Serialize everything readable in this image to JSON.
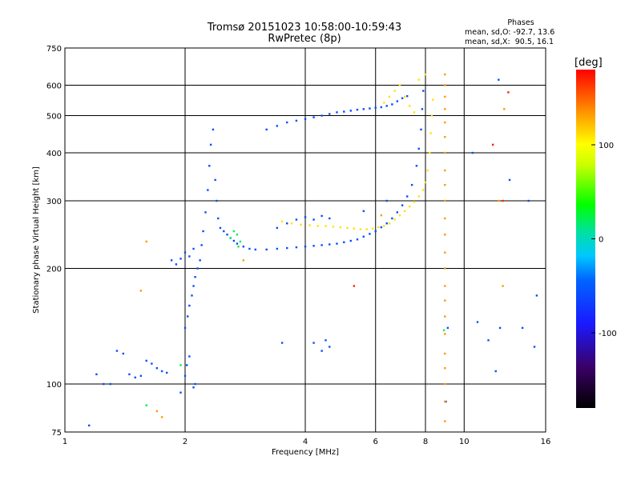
{
  "chart_data": {
    "type": "scatter",
    "title": "Tromsø 20151023 10:58:00-10:59:43",
    "subtitle": "RwPretec (8p)",
    "xlabel": "Frequency [MHz]",
    "ylabel": "Stationary phase Virtual Height [km]",
    "x_scale": "log",
    "y_scale": "log",
    "xlim": [
      1,
      16
    ],
    "ylim": [
      75,
      750
    ],
    "x_ticks": [
      1,
      2,
      4,
      6,
      8,
      10,
      16
    ],
    "x_tick_labels": [
      "1",
      "2",
      "4",
      "6",
      "8",
      "10",
      "16"
    ],
    "y_ticks": [
      75,
      100,
      200,
      300,
      400,
      500,
      600,
      750
    ],
    "y_tick_labels": [
      "75",
      "100",
      "200",
      "300",
      "400",
      "500",
      "600",
      "750"
    ],
    "grid": true,
    "phase_info": {
      "heading": "Phases",
      "o_line": "mean, sd,O: -92.7, 13.6",
      "x_line": "mean, sd,X:  90.5, 16.1"
    },
    "colorbar": {
      "label": "[deg]",
      "ticks": [
        100,
        0,
        -100
      ],
      "tick_labels": [
        "100",
        "0",
        "-100"
      ],
      "range": [
        -180,
        180
      ]
    },
    "series": [
      {
        "color_value": -100,
        "points": [
          [
            1.15,
            78
          ],
          [
            1.2,
            106
          ],
          [
            1.25,
            100
          ],
          [
            1.3,
            100
          ],
          [
            1.35,
            122
          ],
          [
            1.4,
            120
          ],
          [
            1.45,
            106
          ],
          [
            1.5,
            104
          ],
          [
            1.55,
            105
          ],
          [
            1.6,
            115
          ],
          [
            1.65,
            113
          ],
          [
            1.7,
            110
          ],
          [
            1.75,
            108
          ],
          [
            1.8,
            107
          ],
          [
            1.85,
            210
          ],
          [
            1.9,
            205
          ],
          [
            1.95,
            212
          ],
          [
            2.0,
            220
          ],
          [
            2.05,
            215
          ],
          [
            2.1,
            225
          ],
          [
            1.95,
            95
          ],
          [
            2.0,
            105
          ],
          [
            2.02,
            112
          ],
          [
            2.05,
            118
          ],
          [
            2.1,
            98
          ],
          [
            2.12,
            100
          ],
          [
            2.0,
            140
          ],
          [
            2.03,
            150
          ],
          [
            2.05,
            160
          ],
          [
            2.08,
            170
          ],
          [
            2.1,
            180
          ],
          [
            2.12,
            190
          ],
          [
            2.15,
            200
          ],
          [
            2.18,
            210
          ],
          [
            2.2,
            230
          ],
          [
            2.22,
            250
          ],
          [
            2.25,
            280
          ],
          [
            2.28,
            320
          ],
          [
            2.3,
            370
          ],
          [
            2.32,
            420
          ],
          [
            2.35,
            460
          ],
          [
            2.38,
            340
          ],
          [
            2.4,
            300
          ],
          [
            2.42,
            270
          ],
          [
            2.45,
            255
          ],
          [
            2.5,
            250
          ],
          [
            2.55,
            245
          ],
          [
            2.6,
            240
          ],
          [
            2.65,
            236
          ],
          [
            2.7,
            232
          ],
          [
            2.8,
            228
          ],
          [
            2.9,
            225
          ],
          [
            3.0,
            224
          ],
          [
            3.2,
            224
          ],
          [
            3.4,
            225
          ],
          [
            3.6,
            226
          ],
          [
            3.8,
            227
          ],
          [
            4.0,
            228
          ],
          [
            4.2,
            229
          ],
          [
            4.4,
            230
          ],
          [
            4.6,
            231
          ],
          [
            4.8,
            232
          ],
          [
            5.0,
            234
          ],
          [
            5.2,
            236
          ],
          [
            5.4,
            238
          ],
          [
            5.6,
            242
          ],
          [
            5.8,
            246
          ],
          [
            6.0,
            250
          ],
          [
            6.2,
            256
          ],
          [
            6.4,
            262
          ],
          [
            6.6,
            270
          ],
          [
            6.8,
            280
          ],
          [
            7.0,
            292
          ],
          [
            7.2,
            308
          ],
          [
            7.4,
            330
          ],
          [
            7.6,
            370
          ],
          [
            7.7,
            410
          ],
          [
            7.8,
            460
          ],
          [
            7.85,
            520
          ],
          [
            7.9,
            580
          ],
          [
            3.2,
            460
          ],
          [
            3.4,
            470
          ],
          [
            3.6,
            480
          ],
          [
            3.8,
            485
          ],
          [
            4.0,
            490
          ],
          [
            4.2,
            495
          ],
          [
            4.4,
            500
          ],
          [
            4.6,
            505
          ],
          [
            4.8,
            510
          ],
          [
            5.0,
            512
          ],
          [
            5.2,
            515
          ],
          [
            5.4,
            518
          ],
          [
            5.6,
            520
          ],
          [
            5.8,
            522
          ],
          [
            6.0,
            524
          ],
          [
            6.2,
            526
          ],
          [
            6.4,
            530
          ],
          [
            6.6,
            535
          ],
          [
            6.8,
            545
          ],
          [
            7.0,
            555
          ],
          [
            7.2,
            562
          ],
          [
            3.4,
            255
          ],
          [
            3.6,
            262
          ],
          [
            3.8,
            268
          ],
          [
            4.0,
            272
          ],
          [
            4.2,
            268
          ],
          [
            4.4,
            274
          ],
          [
            4.6,
            270
          ],
          [
            5.6,
            282
          ],
          [
            6.4,
            300
          ],
          [
            3.5,
            128
          ],
          [
            4.2,
            128
          ],
          [
            4.5,
            130
          ],
          [
            4.6,
            125
          ],
          [
            4.4,
            122
          ],
          [
            9.0,
            90
          ],
          [
            9.1,
            140
          ],
          [
            10.5,
            400
          ],
          [
            10.8,
            145
          ],
          [
            11.5,
            130
          ],
          [
            12.0,
            108
          ],
          [
            12.2,
            620
          ],
          [
            12.3,
            140
          ],
          [
            13.0,
            340
          ],
          [
            14.0,
            140
          ],
          [
            14.5,
            300
          ],
          [
            15.0,
            125
          ],
          [
            15.2,
            170
          ]
        ]
      },
      {
        "color_value": 110,
        "points": [
          [
            3.5,
            265
          ],
          [
            3.7,
            262
          ],
          [
            3.9,
            260
          ],
          [
            4.1,
            259
          ],
          [
            4.3,
            258
          ],
          [
            4.5,
            258
          ],
          [
            4.7,
            257
          ],
          [
            4.9,
            256
          ],
          [
            5.1,
            255
          ],
          [
            5.3,
            254
          ],
          [
            5.5,
            253
          ],
          [
            5.7,
            253
          ],
          [
            5.9,
            254
          ],
          [
            6.1,
            256
          ],
          [
            6.3,
            258
          ],
          [
            6.5,
            262
          ],
          [
            6.7,
            268
          ],
          [
            6.9,
            275
          ],
          [
            7.1,
            282
          ],
          [
            7.3,
            290
          ],
          [
            7.5,
            298
          ],
          [
            7.7,
            308
          ],
          [
            7.9,
            320
          ],
          [
            8.0,
            335
          ],
          [
            8.1,
            360
          ],
          [
            8.2,
            400
          ],
          [
            8.25,
            450
          ],
          [
            8.3,
            500
          ],
          [
            8.35,
            550
          ],
          [
            6.3,
            540
          ],
          [
            6.5,
            560
          ],
          [
            6.7,
            580
          ],
          [
            6.9,
            600
          ],
          [
            7.1,
            560
          ],
          [
            7.3,
            530
          ],
          [
            7.5,
            510
          ],
          [
            7.7,
            620
          ],
          [
            8.0,
            640
          ]
        ]
      },
      {
        "color_value": 135,
        "points": [
          [
            8.95,
            80
          ],
          [
            8.95,
            90
          ],
          [
            8.95,
            100
          ],
          [
            8.95,
            110
          ],
          [
            8.95,
            120
          ],
          [
            8.95,
            135
          ],
          [
            8.95,
            150
          ],
          [
            8.95,
            165
          ],
          [
            8.95,
            180
          ],
          [
            8.95,
            200
          ],
          [
            8.95,
            220
          ],
          [
            8.95,
            245
          ],
          [
            8.95,
            270
          ],
          [
            8.95,
            300
          ],
          [
            8.95,
            330
          ],
          [
            8.95,
            360
          ],
          [
            8.95,
            400
          ],
          [
            8.95,
            440
          ],
          [
            8.95,
            480
          ],
          [
            8.95,
            520
          ],
          [
            8.95,
            560
          ],
          [
            8.95,
            600
          ],
          [
            8.95,
            640
          ],
          [
            1.6,
            235
          ],
          [
            1.55,
            175
          ],
          [
            1.7,
            85
          ],
          [
            1.75,
            82
          ],
          [
            2.8,
            210
          ],
          [
            6.2,
            275
          ],
          [
            12.5,
            180
          ],
          [
            12.6,
            520
          ],
          [
            12.2,
            300
          ]
        ]
      },
      {
        "color_value": 20,
        "points": [
          [
            1.6,
            88
          ],
          [
            1.95,
            112
          ],
          [
            2.6,
            240
          ],
          [
            2.65,
            250
          ],
          [
            2.7,
            245
          ],
          [
            2.75,
            235
          ],
          [
            2.72,
            228
          ],
          [
            8.9,
            138
          ]
        ]
      },
      {
        "color_value": 170,
        "points": [
          [
            5.3,
            180
          ],
          [
            11.8,
            420
          ],
          [
            12.5,
            300
          ],
          [
            12.9,
            575
          ]
        ]
      }
    ]
  }
}
